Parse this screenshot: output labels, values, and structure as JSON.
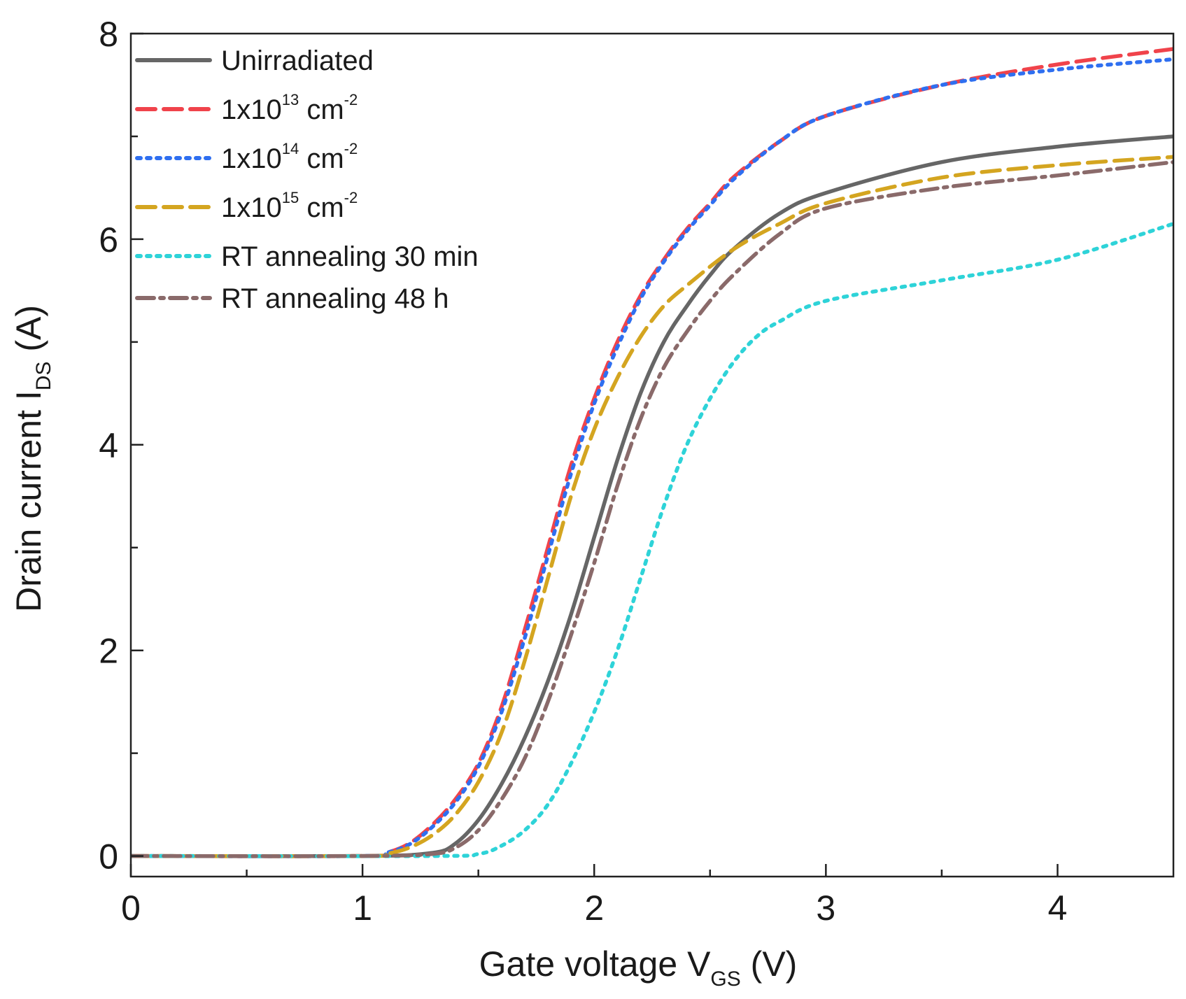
{
  "chart_data": {
    "type": "line",
    "title": "",
    "xlabel": {
      "main": "Gate voltage V",
      "sub": "GS",
      "unit": " (V)"
    },
    "ylabel": {
      "main": "Drain current I",
      "sub": "DS",
      "unit": " (A)"
    },
    "xlim": [
      0,
      4.5
    ],
    "ylim": [
      -0.2,
      8
    ],
    "xticks": [
      0,
      1,
      2,
      3,
      4
    ],
    "xtick_labels": [
      "0",
      "1",
      "2",
      "3",
      "4"
    ],
    "yticks": [
      0,
      2,
      4,
      6,
      8
    ],
    "ytick_labels": [
      "0",
      "2",
      "4",
      "6",
      "8"
    ],
    "grid": false,
    "legend_position": "top-left",
    "series": [
      {
        "name": "Unirradiated",
        "label_parts": [
          "Unirradiated"
        ],
        "color": "#666666",
        "dash": "solid",
        "x": [
          0,
          1.0,
          1.3,
          1.4,
          1.5,
          1.6,
          1.7,
          1.8,
          1.9,
          2.0,
          2.1,
          2.2,
          2.3,
          2.4,
          2.5,
          2.6,
          2.8,
          3.0,
          3.5,
          4.0,
          4.5
        ],
        "y": [
          0,
          0,
          0.03,
          0.12,
          0.35,
          0.7,
          1.15,
          1.7,
          2.35,
          3.1,
          3.85,
          4.5,
          5.0,
          5.35,
          5.65,
          5.9,
          6.25,
          6.45,
          6.75,
          6.9,
          7.0
        ]
      },
      {
        "name": "1x10^13 cm^-2",
        "label_parts": [
          "1x10",
          "13",
          " cm",
          "-2"
        ],
        "color": "#f0434b",
        "dash": "dash",
        "x": [
          0,
          1.0,
          1.1,
          1.2,
          1.3,
          1.4,
          1.5,
          1.6,
          1.7,
          1.8,
          1.9,
          2.0,
          2.1,
          2.2,
          2.3,
          2.4,
          2.5,
          2.6,
          2.8,
          3.0,
          3.5,
          4.0,
          4.5
        ],
        "y": [
          0,
          0,
          0.03,
          0.12,
          0.3,
          0.55,
          0.9,
          1.45,
          2.2,
          3.0,
          3.8,
          4.45,
          5.0,
          5.45,
          5.8,
          6.1,
          6.35,
          6.6,
          6.95,
          7.2,
          7.5,
          7.7,
          7.85
        ]
      },
      {
        "name": "1x10^14 cm^-2",
        "label_parts": [
          "1x10",
          "14",
          " cm",
          "-2"
        ],
        "color": "#2f6ff0",
        "dash": "dot",
        "x": [
          0,
          1.0,
          1.1,
          1.2,
          1.3,
          1.4,
          1.5,
          1.6,
          1.7,
          1.8,
          1.9,
          2.0,
          2.1,
          2.2,
          2.3,
          2.4,
          2.5,
          2.6,
          2.8,
          3.0,
          3.5,
          4.0,
          4.5
        ],
        "y": [
          0,
          0,
          0.03,
          0.11,
          0.28,
          0.52,
          0.87,
          1.4,
          2.12,
          2.92,
          3.72,
          4.4,
          4.95,
          5.42,
          5.78,
          6.08,
          6.33,
          6.58,
          6.95,
          7.2,
          7.5,
          7.65,
          7.75
        ]
      },
      {
        "name": "1x10^15 cm^-2",
        "label_parts": [
          "1x10",
          "15",
          " cm",
          "-2"
        ],
        "color": "#d4a520",
        "dash": "dash",
        "x": [
          0,
          1.0,
          1.1,
          1.2,
          1.3,
          1.4,
          1.5,
          1.6,
          1.7,
          1.8,
          1.9,
          2.0,
          2.1,
          2.2,
          2.3,
          2.4,
          2.6,
          2.8,
          3.0,
          3.5,
          4.0,
          4.5
        ],
        "y": [
          0,
          0,
          0.02,
          0.08,
          0.2,
          0.4,
          0.72,
          1.2,
          1.9,
          2.7,
          3.5,
          4.15,
          4.65,
          5.05,
          5.35,
          5.55,
          5.9,
          6.15,
          6.35,
          6.6,
          6.72,
          6.8
        ]
      },
      {
        "name": "RT annealing 30 min",
        "label_parts": [
          "RT annealing 30 min"
        ],
        "color": "#2ed3d8",
        "dash": "dot",
        "x": [
          0,
          1.3,
          1.5,
          1.6,
          1.7,
          1.8,
          1.9,
          2.0,
          2.1,
          2.2,
          2.3,
          2.4,
          2.5,
          2.6,
          2.7,
          2.8,
          3.0,
          3.5,
          4.0,
          4.5
        ],
        "y": [
          0,
          0,
          0.02,
          0.1,
          0.25,
          0.5,
          0.9,
          1.4,
          2.0,
          2.7,
          3.4,
          4.0,
          4.45,
          4.8,
          5.05,
          5.2,
          5.4,
          5.6,
          5.8,
          6.15
        ]
      },
      {
        "name": "RT annealing 48 h",
        "label_parts": [
          "RT annealing 48 h"
        ],
        "color": "#8a6a6a",
        "dash": "dashdot",
        "x": [
          0,
          1.0,
          1.3,
          1.4,
          1.5,
          1.6,
          1.7,
          1.8,
          1.9,
          2.0,
          2.1,
          2.2,
          2.3,
          2.4,
          2.5,
          2.6,
          2.8,
          3.0,
          3.5,
          4.0,
          4.5
        ],
        "y": [
          0,
          0,
          0.02,
          0.08,
          0.25,
          0.55,
          0.95,
          1.5,
          2.15,
          2.85,
          3.6,
          4.25,
          4.75,
          5.1,
          5.4,
          5.65,
          6.05,
          6.3,
          6.5,
          6.62,
          6.75
        ]
      }
    ]
  }
}
